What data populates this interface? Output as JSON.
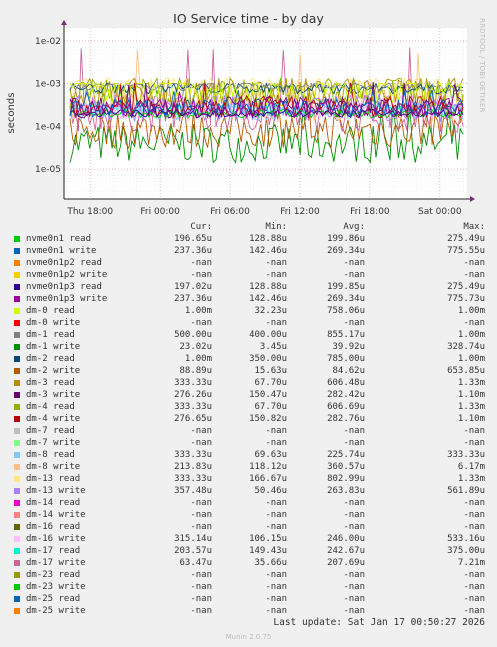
{
  "chart_data": {
    "type": "line",
    "title": "IO Service time - by day",
    "ylabel": "seconds",
    "yscale": "log",
    "ylim": [
      2e-06,
      0.02
    ],
    "yticks": [
      "1e-05",
      "1e-04",
      "1e-03",
      "1e-02"
    ],
    "ytick_values": [
      1e-05,
      0.0001,
      0.001,
      0.01
    ],
    "xlim": [
      "2026-01-16 15:30",
      "2026-01-17 00:50"
    ],
    "xticks": [
      "Thu 18:00",
      "Fri 00:00",
      "Fri 06:00",
      "Fri 12:00",
      "Fri 18:00",
      "Sat 00:00"
    ],
    "grid": true,
    "columns": [
      "Cur:",
      "Min:",
      "Avg:",
      "Max:"
    ],
    "series": [
      {
        "name": "nvme0n1 read",
        "color": "#00cc00",
        "cur": "196.65u",
        "min": "128.88u",
        "avg": "199.86u",
        "max": "275.49u"
      },
      {
        "name": "nvme0n1 write",
        "color": "#0066b3",
        "cur": "237.36u",
        "min": "142.46u",
        "avg": "269.34u",
        "max": "775.55u"
      },
      {
        "name": "nvme0n1p2 read",
        "color": "#ff8000",
        "cur": "-nan",
        "min": "-nan",
        "avg": "-nan",
        "max": "-nan"
      },
      {
        "name": "nvme0n1p2 write",
        "color": "#ffcc00",
        "cur": "-nan",
        "min": "-nan",
        "avg": "-nan",
        "max": "-nan"
      },
      {
        "name": "nvme0n1p3 read",
        "color": "#330099",
        "cur": "197.02u",
        "min": "128.88u",
        "avg": "199.85u",
        "max": "275.49u"
      },
      {
        "name": "nvme0n1p3 write",
        "color": "#990099",
        "cur": "237.36u",
        "min": "142.46u",
        "avg": "269.34u",
        "max": "775.73u"
      },
      {
        "name": "dm-0 read",
        "color": "#ccff00",
        "cur": "1.00m",
        "min": "32.23u",
        "avg": "758.06u",
        "max": "1.00m"
      },
      {
        "name": "dm-0 write",
        "color": "#ff0000",
        "cur": "-nan",
        "min": "-nan",
        "avg": "-nan",
        "max": "-nan"
      },
      {
        "name": "dm-1 read",
        "color": "#808080",
        "cur": "500.00u",
        "min": "400.00u",
        "avg": "855.17u",
        "max": "1.00m"
      },
      {
        "name": "dm-1 write",
        "color": "#008f00",
        "cur": "23.02u",
        "min": "3.45u",
        "avg": "39.92u",
        "max": "328.74u"
      },
      {
        "name": "dm-2 read",
        "color": "#00487d",
        "cur": "1.00m",
        "min": "350.00u",
        "avg": "785.00u",
        "max": "1.00m"
      },
      {
        "name": "dm-2 write",
        "color": "#b35a00",
        "cur": "88.89u",
        "min": "15.63u",
        "avg": "84.62u",
        "max": "653.85u"
      },
      {
        "name": "dm-3 read",
        "color": "#b38f00",
        "cur": "333.33u",
        "min": "67.70u",
        "avg": "606.48u",
        "max": "1.33m"
      },
      {
        "name": "dm-3 write",
        "color": "#6b006b",
        "cur": "276.26u",
        "min": "150.47u",
        "avg": "282.42u",
        "max": "1.10m"
      },
      {
        "name": "dm-4 read",
        "color": "#8fb300",
        "cur": "333.33u",
        "min": "67.70u",
        "avg": "606.69u",
        "max": "1.33m"
      },
      {
        "name": "dm-4 write",
        "color": "#b30000",
        "cur": "276.65u",
        "min": "150.82u",
        "avg": "282.76u",
        "max": "1.10m"
      },
      {
        "name": "dm-7 read",
        "color": "#bebebe",
        "cur": "-nan",
        "min": "-nan",
        "avg": "-nan",
        "max": "-nan"
      },
      {
        "name": "dm-7 write",
        "color": "#80ff80",
        "cur": "-nan",
        "min": "-nan",
        "avg": "-nan",
        "max": "-nan"
      },
      {
        "name": "dm-8 read",
        "color": "#80c9ff",
        "cur": "333.33u",
        "min": "69.63u",
        "avg": "225.74u",
        "max": "333.33u"
      },
      {
        "name": "dm-8 write",
        "color": "#ffc080",
        "cur": "213.83u",
        "min": "118.12u",
        "avg": "360.57u",
        "max": "6.17m"
      },
      {
        "name": "dm-13 read",
        "color": "#ffe680",
        "cur": "333.33u",
        "min": "166.67u",
        "avg": "802.99u",
        "max": "1.33m"
      },
      {
        "name": "dm-13 write",
        "color": "#aa80ff",
        "cur": "357.48u",
        "min": "50.46u",
        "avg": "263.83u",
        "max": "561.89u"
      },
      {
        "name": "dm-14 read",
        "color": "#ee00cc",
        "cur": "-nan",
        "min": "-nan",
        "avg": "-nan",
        "max": "-nan"
      },
      {
        "name": "dm-14 write",
        "color": "#ff8080",
        "cur": "-nan",
        "min": "-nan",
        "avg": "-nan",
        "max": "-nan"
      },
      {
        "name": "dm-16 read",
        "color": "#666600",
        "cur": "-nan",
        "min": "-nan",
        "avg": "-nan",
        "max": "-nan"
      },
      {
        "name": "dm-16 write",
        "color": "#ffbfff",
        "cur": "315.14u",
        "min": "106.15u",
        "avg": "246.00u",
        "max": "533.16u"
      },
      {
        "name": "dm-17 read",
        "color": "#00ffcc",
        "cur": "203.57u",
        "min": "149.43u",
        "avg": "242.67u",
        "max": "375.00u"
      },
      {
        "name": "dm-17 write",
        "color": "#cc6699",
        "cur": "63.47u",
        "min": "35.66u",
        "avg": "207.69u",
        "max": "7.21m"
      },
      {
        "name": "dm-23 read",
        "color": "#999900",
        "cur": "-nan",
        "min": "-nan",
        "avg": "-nan",
        "max": "-nan"
      },
      {
        "name": "dm-23 write",
        "color": "#00cc00",
        "cur": "-nan",
        "min": "-nan",
        "avg": "-nan",
        "max": "-nan"
      },
      {
        "name": "dm-25 read",
        "color": "#0066b3",
        "cur": "-nan",
        "min": "-nan",
        "avg": "-nan",
        "max": "-nan"
      },
      {
        "name": "dm-25 write",
        "color": "#ff8000",
        "cur": "-nan",
        "min": "-nan",
        "avg": "-nan",
        "max": "-nan"
      }
    ]
  },
  "side_label": "RRDTOOL / TOBI OETIKER",
  "last_update": "Last update: Sat Jan 17 00:50:27 2026",
  "footer": "Munin 2.0.75"
}
